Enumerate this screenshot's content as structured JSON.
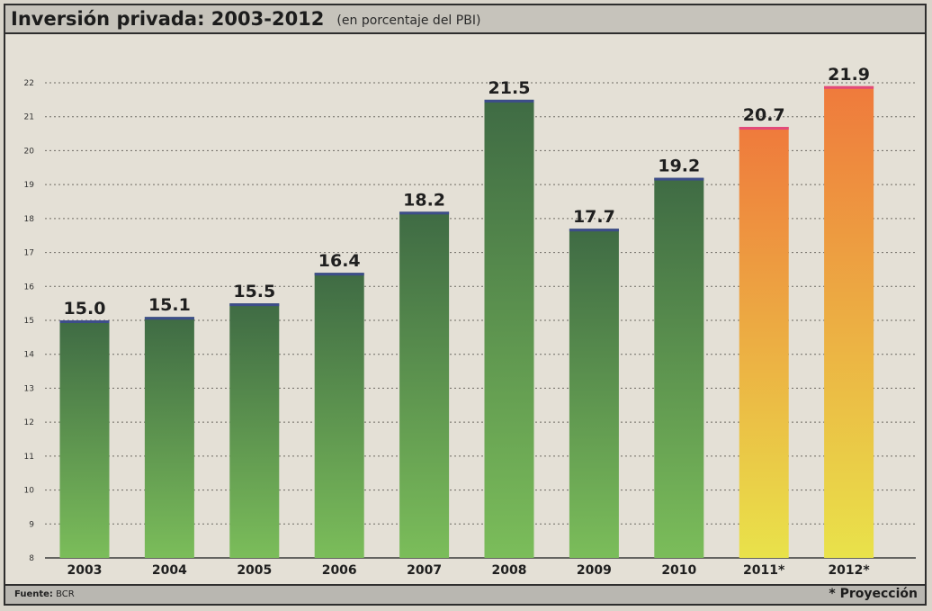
{
  "header": {
    "title": "Inversión privada: 2003-2012",
    "subtitle": "(en porcentaje del PBI)"
  },
  "footer": {
    "source_label": "Fuente:",
    "source_value": "BCR",
    "note": "* Proyección"
  },
  "colors": {
    "actual_top": "#3f6b44",
    "actual_bottom": "#7bbd5a",
    "projection_top": "#ef7a3c",
    "projection_bottom": "#e9e24a",
    "cap_actual": "#3d4d8a",
    "cap_projection": "#e24a7a"
  },
  "chart_data": {
    "type": "bar",
    "title": "Inversión privada: 2003-2012",
    "subtitle": "(en porcentaje del PBI)",
    "categories": [
      "2003",
      "2004",
      "2005",
      "2006",
      "2007",
      "2008",
      "2009",
      "2010",
      "2011*",
      "2012*"
    ],
    "values": [
      15.0,
      15.1,
      15.5,
      16.4,
      18.2,
      21.5,
      17.7,
      19.2,
      20.7,
      21.9
    ],
    "value_labels": [
      "15.0",
      "15.1",
      "15.5",
      "16.4",
      "18.2",
      "21.5",
      "17.7",
      "19.2",
      "20.7",
      "21.9"
    ],
    "projected": [
      false,
      false,
      false,
      false,
      false,
      false,
      false,
      false,
      true,
      true
    ],
    "yticks": [
      "8",
      "9",
      "10",
      "11",
      "12",
      "13",
      "14",
      "15",
      "16",
      "17",
      "18",
      "19",
      "20",
      "21",
      "22"
    ],
    "ylim": [
      8,
      22
    ],
    "grid": true,
    "xlabel": "",
    "ylabel": ""
  }
}
